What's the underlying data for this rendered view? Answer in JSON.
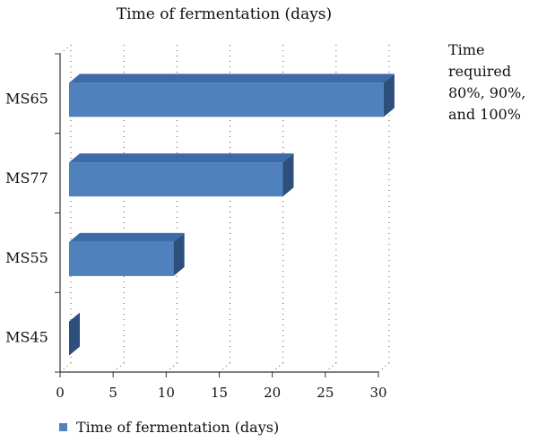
{
  "chart_data": {
    "type": "bar",
    "orientation": "horizontal",
    "three_d": true,
    "title": "Time of fermentation (days)",
    "categories": [
      "MS65",
      "MS77",
      "MS55",
      "MS45"
    ],
    "series": [
      {
        "name": "Time of fermentation (days)",
        "values": [
          30.5,
          21,
          10.7,
          0
        ],
        "color": "#4F81BD"
      }
    ],
    "xlim": [
      0,
      30
    ],
    "xticks": [
      0,
      5,
      10,
      15,
      20,
      25,
      30
    ],
    "grid": "dotted-vertical",
    "legend": "bottom-left",
    "annotation": "Time\nrequired\n80%, 90%,\nand 100%"
  },
  "colors": {
    "bar_front": "#4F81BD",
    "bar_top": "#3E6BA8",
    "bar_side": "#2C4F7C",
    "axis": "#333333"
  }
}
